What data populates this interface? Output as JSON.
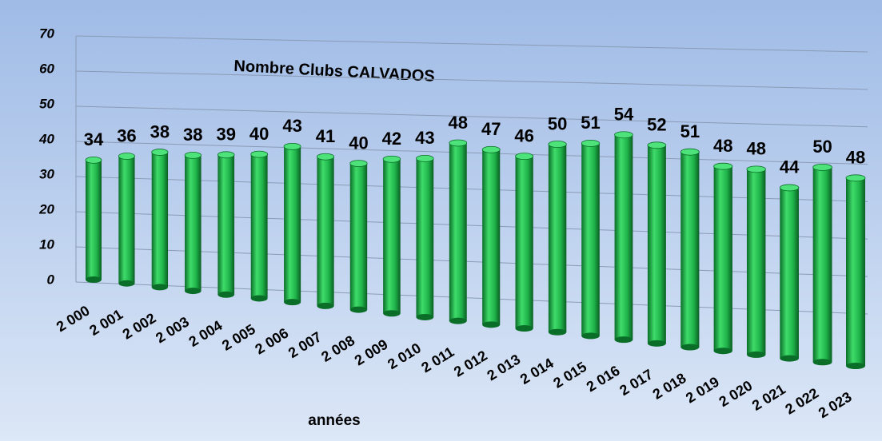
{
  "chart_data": {
    "type": "bar3d",
    "title": "Nombre Clubs CALVADOS",
    "x_label": "années",
    "categories": [
      "2 000",
      "2 001",
      "2 002",
      "2 003",
      "2 004",
      "2 005",
      "2 006",
      "2 007",
      "2 008",
      "2 009",
      "2 010",
      "2 011",
      "2 012",
      "2 013",
      "2 014",
      "2 015",
      "2 016",
      "2 017",
      "2 018",
      "2 019",
      "2 020",
      "2 021",
      "2 022",
      "2 023"
    ],
    "values": [
      34,
      36,
      38,
      38,
      39,
      40,
      43,
      41,
      40,
      42,
      43,
      48,
      47,
      46,
      50,
      51,
      54,
      52,
      51,
      48,
      48,
      44,
      50,
      48
    ],
    "color": "#1fb34a",
    "ylim": [
      0,
      70
    ],
    "yticks": [
      0,
      10,
      20,
      30,
      40,
      50,
      60,
      70
    ],
    "grid": true
  }
}
